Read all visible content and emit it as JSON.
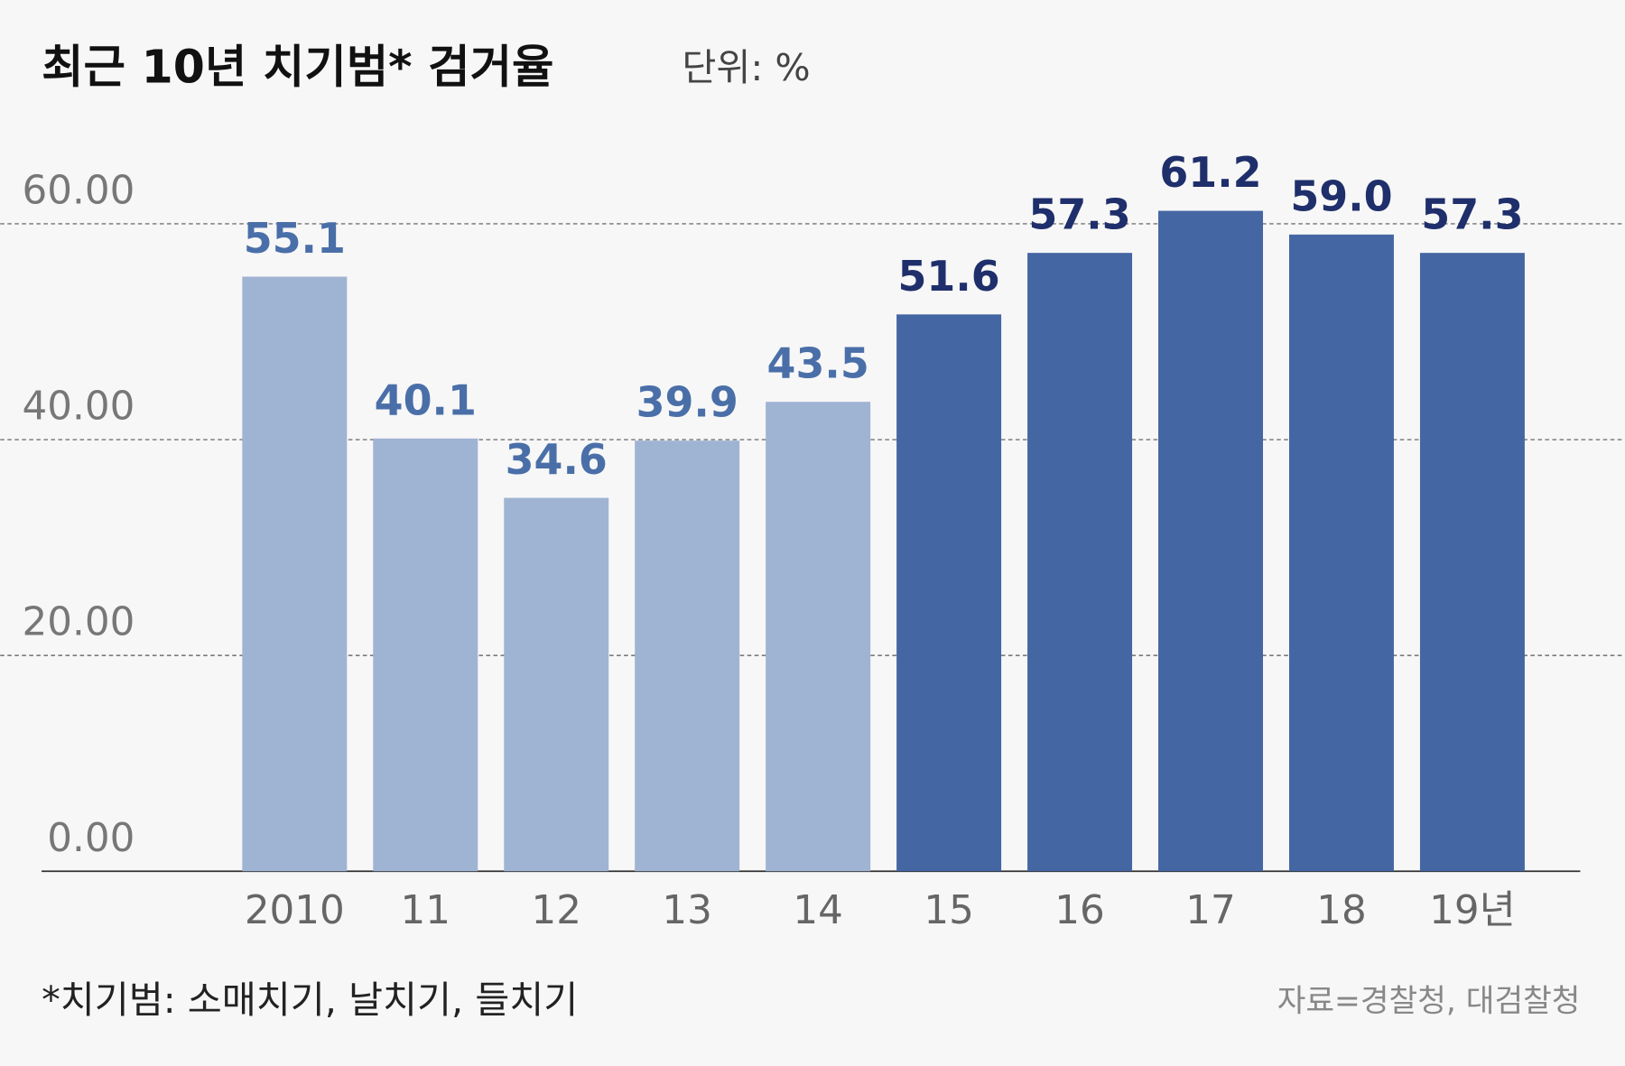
{
  "chart_data": {
    "type": "bar",
    "title": "최근 10년 치기범* 검거율",
    "subtitle": "단위: %",
    "footnote": "*치기범: 소매치기, 날치기, 들치기",
    "source": "자료=경찰청, 대검찰청",
    "categories": [
      "2010",
      "11",
      "12",
      "13",
      "14",
      "15",
      "16",
      "17",
      "18",
      "19년"
    ],
    "values": [
      55.1,
      40.1,
      34.6,
      39.9,
      43.5,
      51.6,
      57.3,
      61.2,
      59.0,
      57.3
    ],
    "value_labels": [
      "55.1",
      "40.1",
      "34.6",
      "39.9",
      "43.5",
      "51.6",
      "57.3",
      "61.2",
      "59.0",
      "57.3"
    ],
    "colors": [
      "#9fb3d3",
      "#9fb3d3",
      "#9fb3d3",
      "#9fb3d3",
      "#9fb3d3",
      "#4466a3",
      "#4466a3",
      "#4466a3",
      "#4466a3",
      "#4466a3"
    ],
    "label_colors": [
      "#4a6fa8",
      "#4a6fa8",
      "#4a6fa8",
      "#4a6fa8",
      "#4a6fa8",
      "#1f2f6b",
      "#1f2f6b",
      "#1f2f6b",
      "#1f2f6b",
      "#1f2f6b"
    ],
    "ylim": [
      0,
      60
    ],
    "yticks": [
      {
        "value": 0,
        "label": "0.00"
      },
      {
        "value": 20,
        "label": "20.00"
      },
      {
        "value": 40,
        "label": "40.00"
      },
      {
        "value": 60,
        "label": "60.00"
      }
    ],
    "grid": true
  }
}
